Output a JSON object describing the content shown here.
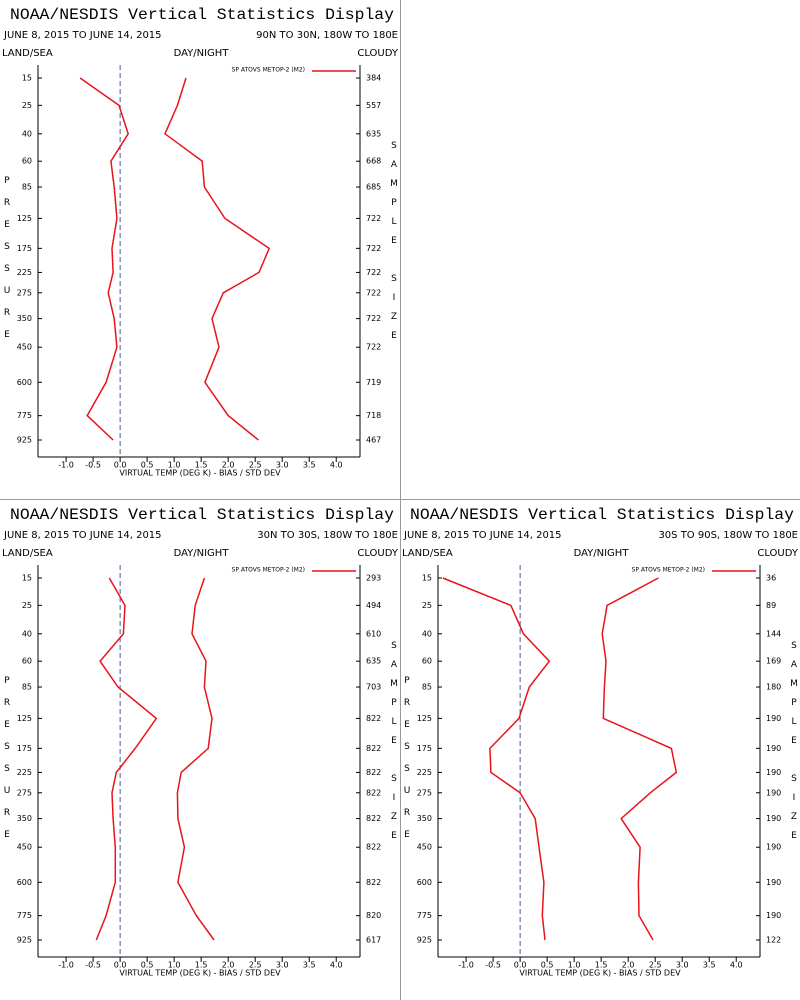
{
  "chart_data": [
    {
      "type": "line",
      "title": "NOAA/NESDIS Vertical Statistics Display",
      "subtitle": "JUNE 8, 2015 TO JUNE 14, 2015",
      "region": "90N TO 30N, 180W TO 180E",
      "left_header": "LAND/SEA",
      "center_header": "DAY/NIGHT",
      "right_header": "CLOUDY",
      "x_label": "VIRTUAL TEMP (DEG K) - BIAS / STD DEV",
      "y_label": "PRESSURE",
      "y2_label": "SAMPLE SIZE",
      "levels": [
        15,
        25,
        40,
        60,
        85,
        125,
        175,
        225,
        275,
        350,
        450,
        600,
        775,
        925
      ],
      "sample_size": [
        384,
        557,
        635,
        668,
        685,
        722,
        722,
        722,
        722,
        722,
        722,
        719,
        718,
        467
      ],
      "xlim": [
        -1.52,
        4.44
      ],
      "xticks": [
        {
          "value": -1,
          "label": "-1.0"
        },
        -0.5,
        {
          "value": 0,
          "label": "0.0"
        },
        0.5,
        {
          "value": 1,
          "label": "1.0"
        },
        1.5,
        {
          "value": 2,
          "label": "2.0"
        },
        2.5,
        {
          "value": 3,
          "label": "3.0"
        },
        3.5,
        {
          "value": 4,
          "label": "4.0"
        }
      ],
      "series": [
        {
          "name": "SP ATOVS METOP-2 (M2)",
          "color": "#e8141a",
          "bias": [
            -0.74,
            -0.02,
            0.15,
            -0.17,
            -0.11,
            -0.06,
            -0.15,
            -0.13,
            -0.22,
            -0.11,
            -0.06,
            -0.26,
            -0.61,
            -0.13
          ],
          "std_dev": [
            1.22,
            1.06,
            0.83,
            1.52,
            1.56,
            1.94,
            2.76,
            2.57,
            1.91,
            1.7,
            1.83,
            1.57,
            2.0,
            2.56
          ]
        }
      ]
    },
    {
      "type": "line",
      "title": "NOAA/NESDIS Vertical Statistics Display",
      "subtitle": "JUNE 8, 2015 TO JUNE 14, 2015",
      "region": "30N TO 30S, 180W TO 180E",
      "left_header": "LAND/SEA",
      "center_header": "DAY/NIGHT",
      "right_header": "CLOUDY",
      "x_label": "VIRTUAL TEMP (DEG K) - BIAS / STD DEV",
      "y_label": "PRESSURE",
      "y2_label": "SAMPLE SIZE",
      "levels": [
        15,
        25,
        40,
        60,
        85,
        125,
        175,
        225,
        275,
        350,
        450,
        600,
        775,
        925
      ],
      "sample_size": [
        293,
        494,
        610,
        635,
        703,
        822,
        822,
        822,
        822,
        822,
        822,
        822,
        820,
        617
      ],
      "xlim": [
        -1.52,
        4.44
      ],
      "xticks": [
        {
          "value": -1,
          "label": "-1.0"
        },
        -0.5,
        {
          "value": 0,
          "label": "0.0"
        },
        0.5,
        {
          "value": 1,
          "label": "1.0"
        },
        1.5,
        {
          "value": 2,
          "label": "2.0"
        },
        2.5,
        {
          "value": 3,
          "label": "3.0"
        },
        3.5,
        {
          "value": 4,
          "label": "4.0"
        }
      ],
      "series": [
        {
          "name": "SP ATOVS METOP-2 (M2)",
          "color": "#e8141a",
          "bias": [
            -0.2,
            0.09,
            0.06,
            -0.37,
            -0.04,
            0.67,
            0.28,
            -0.07,
            -0.15,
            -0.13,
            -0.09,
            -0.09,
            -0.26,
            -0.44
          ],
          "std_dev": [
            1.56,
            1.39,
            1.33,
            1.59,
            1.56,
            1.7,
            1.63,
            1.13,
            1.06,
            1.07,
            1.19,
            1.07,
            1.41,
            1.74
          ]
        }
      ]
    },
    {
      "type": "line",
      "title": "NOAA/NESDIS Vertical Statistics Display",
      "subtitle": "JUNE 8, 2015 TO JUNE 14, 2015",
      "region": "30S TO 90S, 180W TO 180E",
      "left_header": "LAND/SEA",
      "center_header": "DAY/NIGHT",
      "right_header": "CLOUDY",
      "x_label": "VIRTUAL TEMP (DEG K) - BIAS / STD DEV",
      "y_label": "PRESSURE",
      "y2_label": "SAMPLE SIZE",
      "levels": [
        15,
        25,
        40,
        60,
        85,
        125,
        175,
        225,
        275,
        350,
        450,
        600,
        775,
        925
      ],
      "sample_size": [
        36,
        89,
        144,
        169,
        180,
        190,
        190,
        190,
        190,
        190,
        190,
        190,
        190,
        122
      ],
      "xlim": [
        -1.52,
        4.44
      ],
      "xticks": [
        {
          "value": -1,
          "label": "-1.0"
        },
        -0.5,
        {
          "value": 0,
          "label": "0.0"
        },
        0.5,
        {
          "value": 1,
          "label": "1.0"
        },
        1.5,
        {
          "value": 2,
          "label": "2.0"
        },
        2.5,
        {
          "value": 3,
          "label": "3.0"
        },
        3.5,
        {
          "value": 4,
          "label": "4.0"
        }
      ],
      "series": [
        {
          "name": "SP ATOVS METOP-2 (M2)",
          "color": "#e8141a",
          "bias": [
            -1.43,
            -0.17,
            0.06,
            0.54,
            0.17,
            -0.02,
            -0.56,
            -0.54,
            0.0,
            0.28,
            0.35,
            0.44,
            0.41,
            0.46
          ],
          "std_dev": [
            2.56,
            1.61,
            1.52,
            1.59,
            1.56,
            1.54,
            2.8,
            2.89,
            2.41,
            1.87,
            2.22,
            2.19,
            2.2,
            2.46
          ]
        }
      ]
    }
  ]
}
